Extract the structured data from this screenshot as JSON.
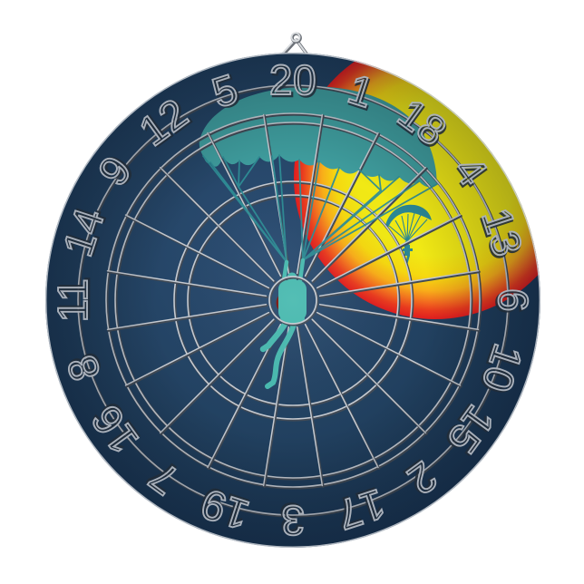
{
  "dartboard": {
    "numbers_clockwise_from_top": [
      "20",
      "1",
      "18",
      "4",
      "13",
      "6",
      "10",
      "15",
      "2",
      "17",
      "3",
      "19",
      "7",
      "16",
      "8",
      "11",
      "14",
      "9",
      "12",
      "5"
    ]
  },
  "illustration": {
    "elements": [
      "hanger-bracket-icon",
      "sun-icon",
      "parachute-canopy-icon",
      "suspension-lines",
      "skydiver-figure-icon",
      "mini-parachutist-icon",
      "bullseye",
      "wire-spider",
      "number-ring"
    ]
  },
  "colors": {
    "background": "#ffffff",
    "board_center": "#2c4e74",
    "board_mid": "#21405f",
    "board_edge": "#16304d",
    "rim_highlight": "#ccd1d7",
    "sun_core": "#f1e915",
    "sun_amber": "#f6d910",
    "sun_orange": "#f9ae19",
    "sun_flame": "#f3701f",
    "sun_red": "#e01d1f",
    "canopy_teal": "#3f9d9e",
    "line_teal": "#2f8e96",
    "figure_teal": "#49bab0",
    "mini_teal": "#2b8794",
    "wire_light": "#c6cbd2",
    "wire_dark": "#424b56",
    "number_light": "#a9b0ba",
    "number_shadow": "#222d39",
    "bullseye_red": "#7c150f",
    "metal_light": "#d9dcdf",
    "metal_dark": "#6b7077"
  }
}
